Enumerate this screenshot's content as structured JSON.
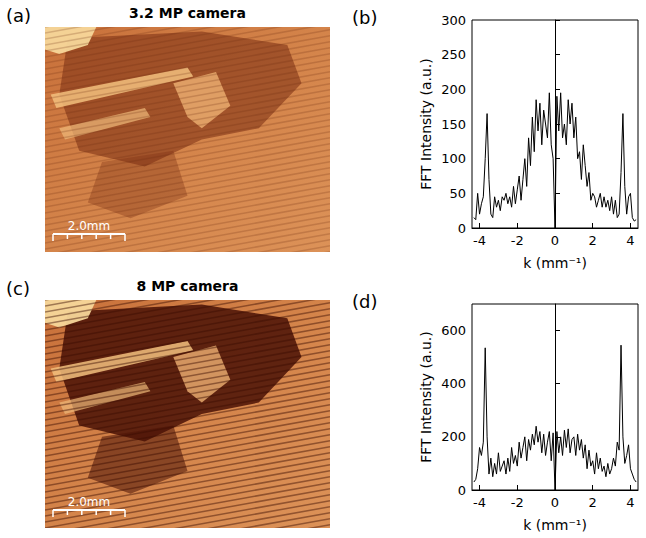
{
  "chart_data": [
    {
      "type": "line",
      "annotations": [
        "(b)"
      ],
      "x_label": "k (mm⁻¹)",
      "y_label": "FFT Intensity (a.u.)",
      "color": "#000000",
      "grid": false,
      "xlim": [
        -4.4,
        4.4
      ],
      "xticks": [
        -4,
        -2,
        0,
        2,
        4
      ],
      "ylim": [
        0,
        300
      ],
      "yticks": [
        0,
        50,
        100,
        150,
        200,
        250,
        300
      ],
      "x": [
        -4.3,
        -4.2,
        -4.1,
        -4.0,
        -3.9,
        -3.8,
        -3.7,
        -3.6,
        -3.5,
        -3.4,
        -3.3,
        -3.2,
        -3.1,
        -3.0,
        -2.9,
        -2.8,
        -2.7,
        -2.6,
        -2.5,
        -2.4,
        -2.3,
        -2.2,
        -2.1,
        -2.0,
        -1.9,
        -1.8,
        -1.7,
        -1.6,
        -1.5,
        -1.4,
        -1.3,
        -1.2,
        -1.1,
        -1.0,
        -0.9,
        -0.8,
        -0.7,
        -0.6,
        -0.5,
        -0.4,
        -0.3,
        -0.2,
        -0.1,
        0,
        0.1,
        0.2,
        0.3,
        0.4,
        0.5,
        0.6,
        0.7,
        0.8,
        0.9,
        1.0,
        1.1,
        1.2,
        1.3,
        1.4,
        1.5,
        1.6,
        1.7,
        1.8,
        1.9,
        2.0,
        2.1,
        2.2,
        2.3,
        2.4,
        2.5,
        2.6,
        2.7,
        2.8,
        2.9,
        3.0,
        3.1,
        3.2,
        3.3,
        3.4,
        3.5,
        3.6,
        3.7,
        3.8,
        3.9,
        4.0,
        4.1,
        4.2,
        4.3
      ],
      "values": [
        15,
        12,
        50,
        20,
        35,
        45,
        100,
        165,
        70,
        20,
        15,
        45,
        30,
        40,
        25,
        45,
        40,
        50,
        35,
        45,
        30,
        60,
        35,
        55,
        75,
        40,
        70,
        100,
        60,
        130,
        90,
        160,
        110,
        185,
        140,
        180,
        120,
        170,
        150,
        130,
        195,
        120,
        100,
        0,
        190,
        140,
        195,
        130,
        150,
        120,
        185,
        150,
        180,
        130,
        160,
        100,
        110,
        70,
        120,
        90,
        60,
        80,
        40,
        50,
        45,
        30,
        40,
        50,
        30,
        45,
        30,
        40,
        25,
        45,
        20,
        40,
        15,
        20,
        80,
        165,
        60,
        20,
        45,
        50,
        15,
        10,
        12
      ]
    },
    {
      "type": "line",
      "annotations": [
        "(d)"
      ],
      "x_label": "k (mm⁻¹)",
      "y_label": "FFT Intensity (a.u.)",
      "color": "#000000",
      "grid": false,
      "xlim": [
        -4.4,
        4.4
      ],
      "xticks": [
        -4,
        -2,
        0,
        2,
        4
      ],
      "ylim": [
        0,
        700
      ],
      "yticks": [
        0,
        200,
        400,
        600
      ],
      "x": [
        -4.3,
        -4.2,
        -4.1,
        -4.0,
        -3.9,
        -3.8,
        -3.7,
        -3.6,
        -3.5,
        -3.4,
        -3.3,
        -3.2,
        -3.1,
        -3.0,
        -2.9,
        -2.8,
        -2.7,
        -2.6,
        -2.5,
        -2.4,
        -2.3,
        -2.2,
        -2.1,
        -2.0,
        -1.9,
        -1.8,
        -1.7,
        -1.6,
        -1.5,
        -1.4,
        -1.3,
        -1.2,
        -1.1,
        -1.0,
        -0.9,
        -0.8,
        -0.7,
        -0.6,
        -0.5,
        -0.4,
        -0.3,
        -0.2,
        -0.1,
        0,
        0.1,
        0.2,
        0.3,
        0.4,
        0.5,
        0.6,
        0.7,
        0.8,
        0.9,
        1.0,
        1.1,
        1.2,
        1.3,
        1.4,
        1.5,
        1.6,
        1.7,
        1.8,
        1.9,
        2.0,
        2.1,
        2.2,
        2.3,
        2.4,
        2.5,
        2.6,
        2.7,
        2.8,
        2.9,
        3.0,
        3.1,
        3.2,
        3.3,
        3.4,
        3.5,
        3.6,
        3.7,
        3.8,
        3.9,
        4.0,
        4.1,
        4.2,
        4.3
      ],
      "values": [
        30,
        40,
        80,
        160,
        130,
        180,
        535,
        200,
        60,
        120,
        50,
        100,
        60,
        140,
        70,
        90,
        110,
        60,
        120,
        70,
        160,
        100,
        130,
        90,
        180,
        120,
        160,
        200,
        110,
        190,
        150,
        210,
        170,
        240,
        180,
        220,
        140,
        210,
        130,
        180,
        220,
        110,
        215,
        0,
        220,
        140,
        200,
        130,
        225,
        160,
        230,
        140,
        190,
        200,
        130,
        210,
        150,
        190,
        120,
        170,
        80,
        150,
        90,
        110,
        60,
        140,
        80,
        120,
        70,
        90,
        50,
        100,
        60,
        80,
        120,
        90,
        180,
        150,
        545,
        200,
        100,
        130,
        170,
        80,
        60,
        40,
        30
      ]
    }
  ],
  "images": [
    {
      "letter": "(a)",
      "title": "3.2 MP camera",
      "scale_bar": "2.0mm"
    },
    {
      "letter": "(c)",
      "title": "8 MP camera",
      "scale_bar": "2.0mm"
    }
  ]
}
